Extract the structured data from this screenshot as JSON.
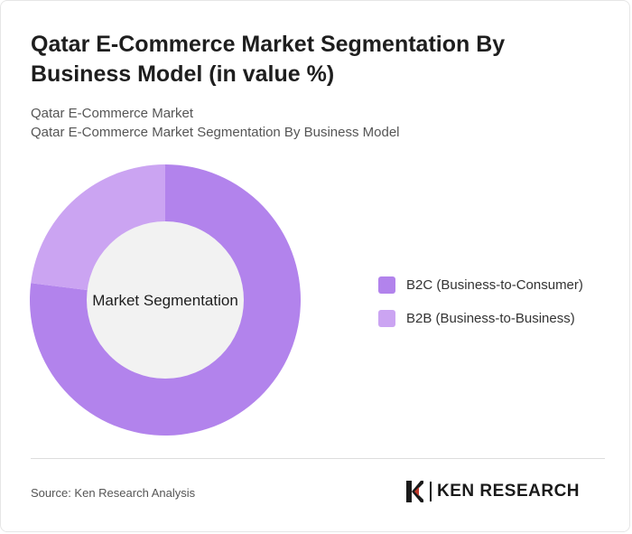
{
  "title": "Qatar E-Commerce Market Segmentation By Business Model (in value %)",
  "subtitle": {
    "line1": "Qatar E-Commerce Market",
    "line2": "Qatar E-Commerce Market Segmentation By Business Model"
  },
  "chart_data": {
    "type": "pie",
    "variant": "donut",
    "center_label": "Market Segmentation",
    "categories": [
      "B2C (Business-to-Consumer)",
      "B2B (Business-to-Business)"
    ],
    "values": [
      77,
      23
    ],
    "colors": [
      "#b283ec",
      "#cba4f2"
    ],
    "center_color": "#f2f2f2",
    "legend_position": "right"
  },
  "footer": {
    "source": "Source: Ken Research Analysis",
    "logo_text": "KEN RESEARCH"
  }
}
